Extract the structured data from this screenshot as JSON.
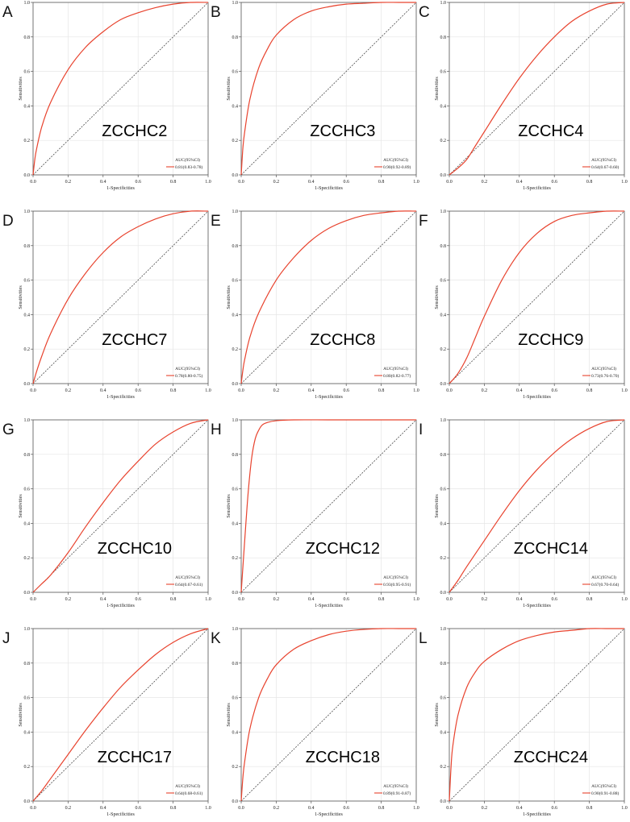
{
  "chart_data": [
    {
      "panel": "A",
      "type": "line",
      "title": "ZCCHC2",
      "xlabel": "1-Specificities",
      "ylabel": "Sensitivities",
      "xlim": [
        0,
        1
      ],
      "ylim": [
        0,
        1
      ],
      "ticks": [
        "0.0",
        "0.2",
        "0.4",
        "0.6",
        "0.8",
        "1.0"
      ],
      "legend_title": "AUC(95%CI)",
      "legend_value": "0.81(0.83-0.78)",
      "legend_position": "bottom-right",
      "grid": true,
      "series": [
        {
          "x": [
            0,
            0.01,
            0.02,
            0.05,
            0.1,
            0.2,
            0.3,
            0.4,
            0.5,
            0.6,
            0.7,
            0.8,
            0.9,
            1
          ],
          "y": [
            0,
            0.09,
            0.15,
            0.28,
            0.42,
            0.61,
            0.74,
            0.83,
            0.9,
            0.94,
            0.97,
            0.99,
            1,
            1
          ]
        }
      ],
      "reference_line": true
    },
    {
      "panel": "B",
      "type": "line",
      "title": "ZCCHC3",
      "xlabel": "1-Specificities",
      "ylabel": "Sensitivities",
      "xlim": [
        0,
        1
      ],
      "ylim": [
        0,
        1
      ],
      "ticks": [
        "0.0",
        "0.2",
        "0.4",
        "0.6",
        "0.8",
        "1.0"
      ],
      "legend_title": "AUC(95%CI)",
      "legend_value": "0.90(0.92-0.89)",
      "legend_position": "bottom-right",
      "grid": true,
      "series": [
        {
          "x": [
            0,
            0.01,
            0.02,
            0.05,
            0.1,
            0.15,
            0.2,
            0.3,
            0.4,
            0.5,
            0.6,
            0.7,
            0.8,
            0.9,
            1
          ],
          "y": [
            0,
            0.16,
            0.25,
            0.44,
            0.62,
            0.73,
            0.81,
            0.9,
            0.95,
            0.975,
            0.99,
            0.995,
            1,
            1,
            1
          ]
        }
      ],
      "reference_line": true
    },
    {
      "panel": "C",
      "type": "line",
      "title": "ZCCHC4",
      "xlabel": "1-Specificities",
      "ylabel": "Sensitivities",
      "xlim": [
        0,
        1
      ],
      "ylim": [
        0,
        1
      ],
      "ticks": [
        "0.0",
        "0.2",
        "0.4",
        "0.6",
        "0.8",
        "1.0"
      ],
      "legend_title": "AUC(95%CI)",
      "legend_value": "0.64(0.67-0.60)",
      "legend_position": "bottom-right",
      "grid": true,
      "series": [
        {
          "x": [
            0,
            0.05,
            0.1,
            0.15,
            0.2,
            0.3,
            0.4,
            0.5,
            0.6,
            0.7,
            0.8,
            0.9,
            1
          ],
          "y": [
            0,
            0.04,
            0.09,
            0.17,
            0.25,
            0.41,
            0.56,
            0.69,
            0.8,
            0.89,
            0.95,
            0.99,
            1
          ]
        }
      ],
      "reference_line": true
    },
    {
      "panel": "D",
      "type": "line",
      "title": "ZCCHC7",
      "xlabel": "1-Specificities",
      "ylabel": "Sensitivities",
      "xlim": [
        0,
        1
      ],
      "ylim": [
        0,
        1
      ],
      "ticks": [
        "0.0",
        "0.2",
        "0.4",
        "0.6",
        "0.8",
        "1.0"
      ],
      "legend_title": "AUC(95%CI)",
      "legend_value": "0.78(0.80-0.75)",
      "legend_position": "bottom-right",
      "grid": true,
      "series": [
        {
          "x": [
            0,
            0.02,
            0.05,
            0.1,
            0.2,
            0.3,
            0.4,
            0.5,
            0.6,
            0.7,
            0.8,
            0.9,
            1
          ],
          "y": [
            0,
            0.07,
            0.16,
            0.29,
            0.49,
            0.64,
            0.76,
            0.85,
            0.91,
            0.955,
            0.985,
            1,
            1
          ]
        }
      ],
      "reference_line": true
    },
    {
      "panel": "E",
      "type": "line",
      "title": "ZCCHC8",
      "xlabel": "1-Specificities",
      "ylabel": "Sensitivities",
      "xlim": [
        0,
        1
      ],
      "ylim": [
        0,
        1
      ],
      "ticks": [
        "0.0",
        "0.2",
        "0.4",
        "0.6",
        "0.8",
        "1.0"
      ],
      "legend_title": "AUC(95%CI)",
      "legend_value": "0.80(0.82-0.77)",
      "legend_position": "bottom-right",
      "grid": true,
      "series": [
        {
          "x": [
            0,
            0.01,
            0.02,
            0.05,
            0.1,
            0.2,
            0.3,
            0.4,
            0.5,
            0.6,
            0.7,
            0.8,
            0.9,
            1
          ],
          "y": [
            0,
            0.08,
            0.14,
            0.27,
            0.41,
            0.6,
            0.73,
            0.83,
            0.9,
            0.945,
            0.975,
            0.99,
            1,
            1
          ]
        }
      ],
      "reference_line": true
    },
    {
      "panel": "F",
      "type": "line",
      "title": "ZCCHC9",
      "xlabel": "1-Specificities",
      "ylabel": "Sensitivities",
      "xlim": [
        0,
        1
      ],
      "ylim": [
        0,
        1
      ],
      "ticks": [
        "0.0",
        "0.2",
        "0.4",
        "0.6",
        "0.8",
        "1.0"
      ],
      "legend_title": "AUC(95%CI)",
      "legend_value": "0.73(0.76-0.70)",
      "legend_position": "bottom-right",
      "grid": true,
      "series": [
        {
          "x": [
            0,
            0.05,
            0.1,
            0.15,
            0.2,
            0.3,
            0.4,
            0.5,
            0.6,
            0.7,
            0.8,
            0.9,
            1
          ],
          "y": [
            0,
            0.06,
            0.15,
            0.27,
            0.39,
            0.6,
            0.76,
            0.87,
            0.94,
            0.975,
            0.99,
            1,
            1
          ]
        }
      ],
      "reference_line": true
    },
    {
      "panel": "G",
      "type": "line",
      "title": "ZCCHC10",
      "xlabel": "1-Specificities",
      "ylabel": "Sensitivities",
      "xlim": [
        0,
        1
      ],
      "ylim": [
        0,
        1
      ],
      "ticks": [
        "0.0",
        "0.2",
        "0.4",
        "0.6",
        "0.8",
        "1.0"
      ],
      "legend_title": "AUC(95%CI)",
      "legend_value": "0.64(0.67-0.61)",
      "legend_position": "bottom-right",
      "grid": true,
      "series": [
        {
          "x": [
            0,
            0.05,
            0.1,
            0.2,
            0.3,
            0.4,
            0.5,
            0.6,
            0.7,
            0.8,
            0.9,
            1
          ],
          "y": [
            0,
            0.05,
            0.1,
            0.23,
            0.38,
            0.52,
            0.65,
            0.76,
            0.86,
            0.93,
            0.98,
            1
          ]
        }
      ],
      "reference_line": true
    },
    {
      "panel": "H",
      "type": "line",
      "title": "ZCCHC12",
      "xlabel": "1-Specificities",
      "ylabel": "Sensitivities",
      "xlim": [
        0,
        1
      ],
      "ylim": [
        0,
        1
      ],
      "ticks": [
        "0.0",
        "0.2",
        "0.4",
        "0.6",
        "0.8",
        "1.0"
      ],
      "legend_title": "AUC(95%CI)",
      "legend_value": "0.93(0.95-0.91)",
      "legend_position": "bottom-right",
      "grid": true,
      "series": [
        {
          "x": [
            0,
            0.02,
            0.04,
            0.06,
            0.08,
            0.1,
            0.12,
            0.15,
            0.2,
            0.3,
            0.5,
            0.7,
            1
          ],
          "y": [
            0,
            0.3,
            0.58,
            0.78,
            0.89,
            0.94,
            0.97,
            0.985,
            0.995,
            1,
            1,
            1,
            1
          ]
        }
      ],
      "reference_line": true
    },
    {
      "panel": "I",
      "type": "line",
      "title": "ZCCHC14",
      "xlabel": "1-Specificities",
      "ylabel": "Sensitivities",
      "xlim": [
        0,
        1
      ],
      "ylim": [
        0,
        1
      ],
      "ticks": [
        "0.0",
        "0.2",
        "0.4",
        "0.6",
        "0.8",
        "1.0"
      ],
      "legend_title": "AUC(95%CI)",
      "legend_value": "0.67(0.70-0.64)",
      "legend_position": "bottom-right",
      "grid": true,
      "series": [
        {
          "x": [
            0,
            0.05,
            0.1,
            0.2,
            0.3,
            0.4,
            0.5,
            0.6,
            0.7,
            0.8,
            0.9,
            1
          ],
          "y": [
            0,
            0.07,
            0.15,
            0.3,
            0.45,
            0.59,
            0.71,
            0.81,
            0.89,
            0.95,
            0.99,
            1
          ]
        }
      ],
      "reference_line": true
    },
    {
      "panel": "J",
      "type": "line",
      "title": "ZCCHC17",
      "xlabel": "1-Specificities",
      "ylabel": "Sensitivities",
      "xlim": [
        0,
        1
      ],
      "ylim": [
        0,
        1
      ],
      "ticks": [
        "0.0",
        "0.2",
        "0.4",
        "0.6",
        "0.8",
        "1.0"
      ],
      "legend_title": "AUC(95%CI)",
      "legend_value": "0.64(0.68-0.61)",
      "legend_position": "bottom-right",
      "grid": true,
      "series": [
        {
          "x": [
            0,
            0.05,
            0.1,
            0.2,
            0.3,
            0.4,
            0.5,
            0.6,
            0.7,
            0.8,
            0.9,
            1
          ],
          "y": [
            0,
            0.06,
            0.13,
            0.27,
            0.41,
            0.54,
            0.66,
            0.76,
            0.85,
            0.92,
            0.97,
            1
          ]
        }
      ],
      "reference_line": true
    },
    {
      "panel": "K",
      "type": "line",
      "title": "ZCCHC18",
      "xlabel": "1-Specificities",
      "ylabel": "Sensitivities",
      "xlim": [
        0,
        1
      ],
      "ylim": [
        0,
        1
      ],
      "ticks": [
        "0.0",
        "0.2",
        "0.4",
        "0.6",
        "0.8",
        "1.0"
      ],
      "legend_title": "AUC(95%CI)",
      "legend_value": "0.89(0.91-0.87)",
      "legend_position": "bottom-right",
      "grid": true,
      "series": [
        {
          "x": [
            0,
            0.01,
            0.02,
            0.05,
            0.1,
            0.15,
            0.2,
            0.3,
            0.4,
            0.5,
            0.6,
            0.7,
            0.8,
            0.9,
            1
          ],
          "y": [
            0,
            0.14,
            0.23,
            0.42,
            0.6,
            0.71,
            0.79,
            0.88,
            0.93,
            0.965,
            0.985,
            0.995,
            1,
            1,
            1
          ]
        }
      ],
      "reference_line": true
    },
    {
      "panel": "L",
      "type": "line",
      "title": "ZCCHC24",
      "xlabel": "1-Specificities",
      "ylabel": "Sensitivities",
      "xlim": [
        0,
        1
      ],
      "ylim": [
        0,
        1
      ],
      "ticks": [
        "0.0",
        "0.2",
        "0.4",
        "0.6",
        "0.8",
        "1.0"
      ],
      "legend_title": "AUC(95%CI)",
      "legend_value": "0.90(0.91-0.88)",
      "legend_position": "bottom-right",
      "grid": true,
      "series": [
        {
          "x": [
            0,
            0.01,
            0.02,
            0.05,
            0.1,
            0.15,
            0.2,
            0.3,
            0.4,
            0.5,
            0.6,
            0.7,
            0.8,
            0.9,
            1
          ],
          "y": [
            0,
            0.2,
            0.32,
            0.5,
            0.66,
            0.75,
            0.81,
            0.88,
            0.93,
            0.96,
            0.98,
            0.99,
            1,
            1,
            1
          ]
        }
      ],
      "reference_line": true
    }
  ],
  "colors": {
    "curve": "#e8432e",
    "reference": "#333333",
    "grid": "#e6e6e6",
    "axis": "#555555",
    "text": "#222222"
  }
}
